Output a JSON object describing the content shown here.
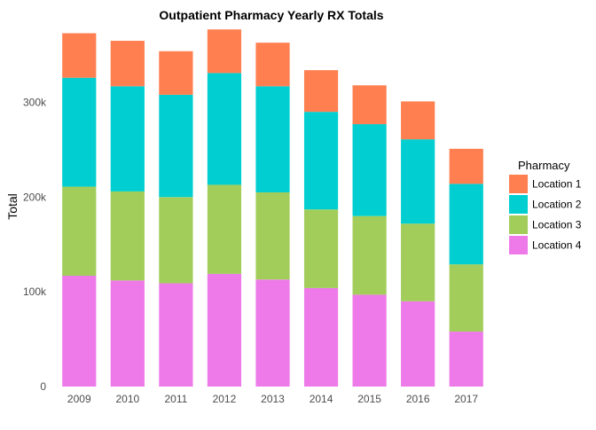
{
  "chart_data": {
    "type": "bar",
    "stacked": true,
    "title": "Outpatient Pharmacy Yearly RX Totals",
    "xlabel": "",
    "ylabel": "Total",
    "ylim": [
      0,
      380000
    ],
    "yticks": [
      0,
      100000,
      200000,
      300000
    ],
    "ytick_labels": [
      "0",
      "100k",
      "200k",
      "300k"
    ],
    "grid": false,
    "legend_title": "Pharmacy",
    "legend_position": "right",
    "categories": [
      "2009",
      "2010",
      "2011",
      "2012",
      "2013",
      "2014",
      "2015",
      "2016",
      "2017"
    ],
    "series": [
      {
        "name": "Location 1",
        "color": "#FF7F50",
        "values": [
          47000,
          48000,
          46000,
          46000,
          46000,
          44000,
          41000,
          40000,
          37000
        ]
      },
      {
        "name": "Location 2",
        "color": "#00CED1",
        "values": [
          115000,
          111000,
          108000,
          118000,
          112000,
          103000,
          97000,
          89000,
          85000
        ]
      },
      {
        "name": "Location 3",
        "color": "#A2CD5A",
        "values": [
          94000,
          94000,
          91000,
          94000,
          92000,
          83000,
          83000,
          82000,
          71000
        ]
      },
      {
        "name": "Location 4",
        "color": "#EE7AE9",
        "values": [
          117000,
          112000,
          109000,
          119000,
          113000,
          104000,
          97000,
          90000,
          58000
        ]
      }
    ]
  }
}
